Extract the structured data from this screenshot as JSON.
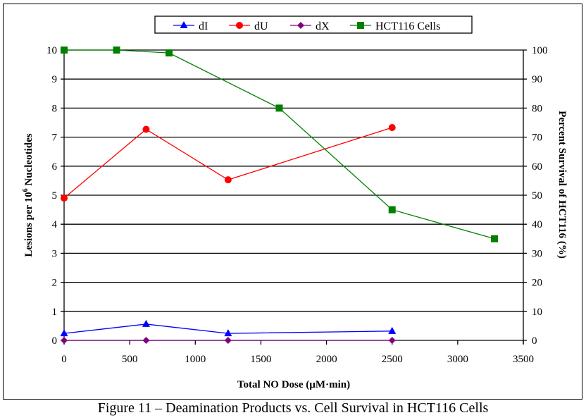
{
  "caption": "Figure 11 – Deamination Products vs. Cell Survival in HCT116 Cells",
  "chart_data": {
    "type": "line",
    "title": "",
    "xlabel": "Total NO Dose (µM·min)",
    "ylabel": "Lesions per 10",
    "ylabel_sup": "6",
    "ylabel_suffix": " Nucleotides",
    "y2label": "Percent Survival of HCT116 (%)",
    "xlim": [
      0,
      3500
    ],
    "ylim": [
      0,
      10
    ],
    "y2lim": [
      0,
      100
    ],
    "x_ticks": [
      0,
      500,
      1000,
      1500,
      2000,
      2500,
      3000,
      3500
    ],
    "y_ticks": [
      0,
      1,
      2,
      3,
      4,
      5,
      6,
      7,
      8,
      9,
      10
    ],
    "y2_ticks": [
      0,
      10,
      20,
      30,
      40,
      50,
      60,
      70,
      80,
      90,
      100
    ],
    "grid": "horizontal",
    "legend_position": "top",
    "series": [
      {
        "name": "dI",
        "axis": "left",
        "color": "#0000ff",
        "marker": "triangle",
        "x": [
          0,
          625,
          1250,
          2500
        ],
        "y": [
          0.24,
          0.56,
          0.24,
          0.32
        ]
      },
      {
        "name": "dU",
        "axis": "left",
        "color": "#ff0000",
        "marker": "circle",
        "x": [
          0,
          625,
          1250,
          2500
        ],
        "y": [
          4.9,
          7.27,
          5.53,
          7.33
        ]
      },
      {
        "name": "dX",
        "axis": "left",
        "color": "#800080",
        "marker": "diamond",
        "x": [
          0,
          625,
          1250,
          2500
        ],
        "y": [
          0,
          0,
          0,
          0
        ]
      },
      {
        "name": "HCT116 Cells",
        "axis": "right",
        "color": "#008000",
        "marker": "square",
        "x": [
          0,
          400,
          800,
          1640,
          2500,
          3280
        ],
        "y": [
          100,
          100,
          99,
          80,
          45,
          35
        ]
      }
    ]
  }
}
